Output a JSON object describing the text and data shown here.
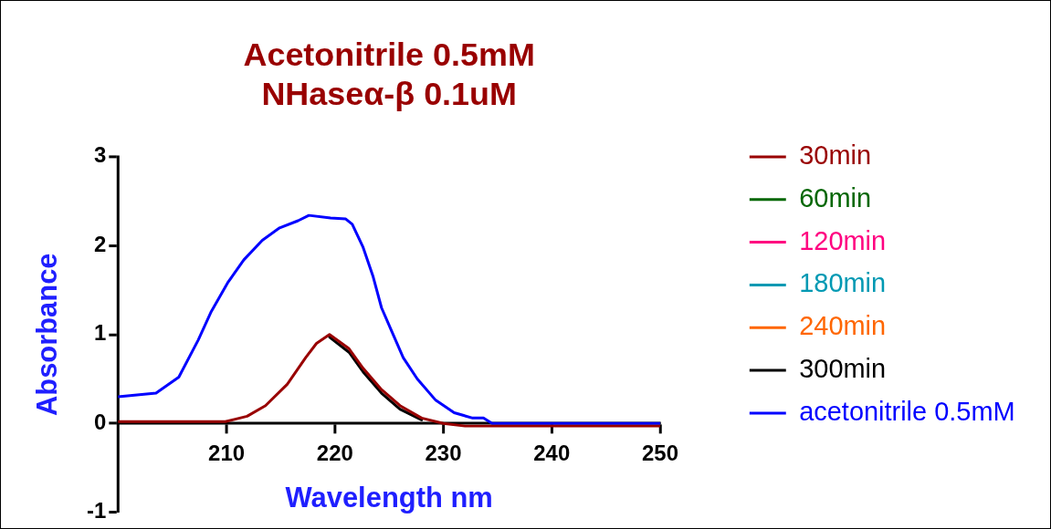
{
  "chart_data": {
    "type": "line",
    "title": "Acetonitrile 0.5mM\nNHaseα-β 0.1uM",
    "xlabel": "Wavelength nm",
    "ylabel": "Absorbance",
    "xlim": [
      200,
      250
    ],
    "xticks": [
      210,
      220,
      230,
      240,
      250
    ],
    "ylim": [
      -1,
      3
    ],
    "yticks": [
      -1,
      0,
      1,
      2,
      3
    ],
    "grid": false,
    "legend": "right",
    "marker": "none",
    "line_style": "solid",
    "series": [
      {
        "name": "30min",
        "color": "#990000",
        "x": [
          200,
          209.9,
          211.9,
          213.6,
          215.6,
          217.3,
          218.3,
          219.5,
          221.3,
          222.6,
          224.3,
          226.0,
          228.0,
          230.0,
          232.0,
          250
        ],
        "values": [
          0.02,
          0.02,
          0.08,
          0.2,
          0.44,
          0.74,
          0.9,
          1.0,
          0.84,
          0.62,
          0.38,
          0.2,
          0.06,
          0.0,
          -0.03,
          -0.03
        ]
      },
      {
        "name": "60min",
        "color": "#006600"
      },
      {
        "name": "120min",
        "color": "#ff0080"
      },
      {
        "name": "180min",
        "color": "#0099b3"
      },
      {
        "name": "240min",
        "color": "#ff6600"
      },
      {
        "name": "300min",
        "color": "#000000",
        "x": [
          219.5,
          221.3,
          222.6,
          224.3,
          226.0,
          228.0
        ],
        "values": [
          0.97,
          0.8,
          0.58,
          0.34,
          0.16,
          0.04
        ]
      },
      {
        "name": "acetonitrile 0.5mM",
        "color": "#0000ff",
        "x": [
          200,
          203.5,
          205.6,
          207.4,
          208.6,
          210.1,
          211.6,
          213.3,
          214.9,
          216.6,
          217.6,
          219.6,
          221.0,
          221.6,
          222.6,
          223.5,
          224.3,
          225.3,
          226.3,
          227.6,
          229.3,
          231.0,
          232.7,
          233.7,
          234.5,
          250
        ],
        "values": [
          0.3,
          0.34,
          0.52,
          0.94,
          1.26,
          1.58,
          1.84,
          2.06,
          2.2,
          2.28,
          2.34,
          2.31,
          2.3,
          2.24,
          1.98,
          1.66,
          1.3,
          1.02,
          0.74,
          0.5,
          0.26,
          0.12,
          0.06,
          0.06,
          0.0,
          0.0
        ]
      }
    ]
  }
}
